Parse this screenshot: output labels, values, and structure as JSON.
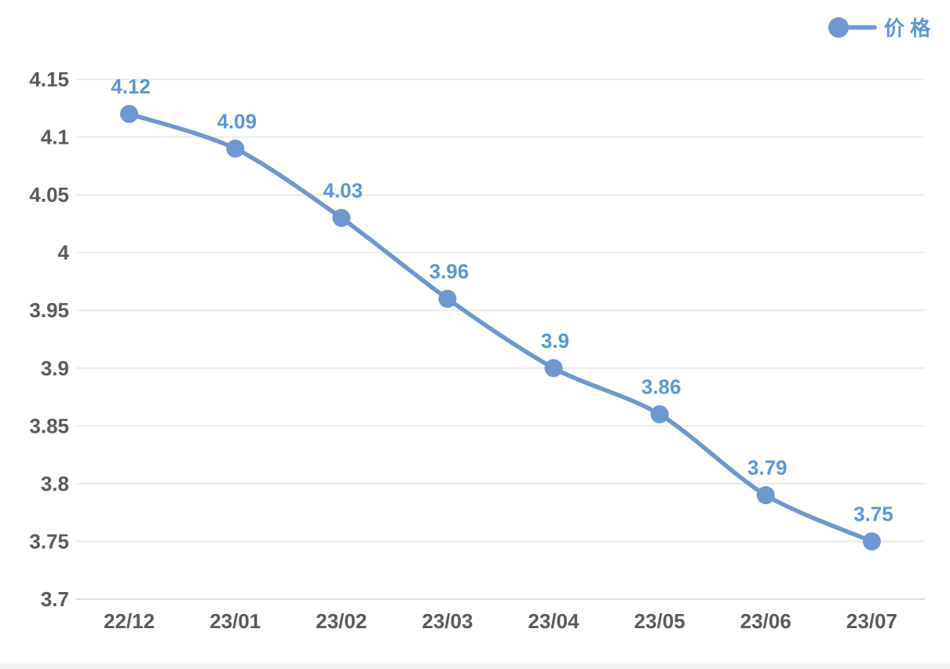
{
  "chart_data": {
    "type": "line",
    "title": "",
    "categories": [
      "22/12",
      "23/01",
      "23/02",
      "23/03",
      "23/04",
      "23/05",
      "23/06",
      "23/07"
    ],
    "series": [
      {
        "name": "价 格",
        "values": [
          4.12,
          4.09,
          4.03,
          3.96,
          3.9,
          3.86,
          3.79,
          3.75
        ],
        "point_labels": [
          "4.12",
          "4.09",
          "4.03",
          "3.96",
          "3.9",
          "3.86",
          "3.79",
          "3.75"
        ]
      }
    ],
    "xlabel": "",
    "ylabel": "",
    "ylim": [
      3.7,
      4.15
    ],
    "ytick_labels": [
      "4.15",
      "4.1",
      "4.05",
      "4",
      "3.95",
      "3.9",
      "3.85",
      "3.8",
      "3.75",
      "3.7"
    ],
    "grid": true,
    "legend_position": "top-right",
    "line_style": "smooth",
    "marker": "circle",
    "colors": {
      "series_line": "#6D97D1",
      "series_marker": "#6D97D1",
      "point_label": "#5B96D6",
      "legend_text": "#5B96D6",
      "axis_text": "#595959",
      "gridline": "#EAEAEA",
      "axis_line": "#DCDCDC",
      "bottom_strip": "#F0F0F0",
      "background": "#FFFFFF"
    }
  }
}
